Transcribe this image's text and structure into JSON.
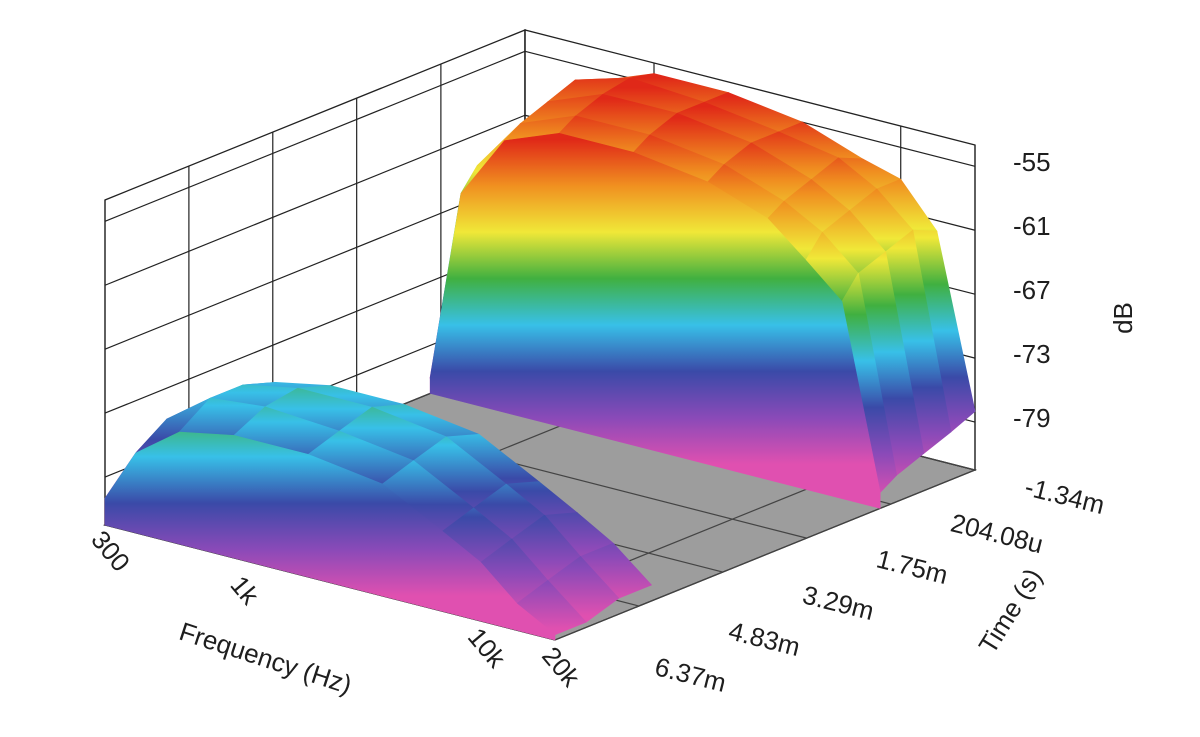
{
  "chart_data": {
    "type": "surface",
    "x_label": "Frequency (Hz)",
    "y_label": "Time (s)",
    "z_label": "dB",
    "xscale": "log",
    "xlim": [
      300,
      20000
    ],
    "xticks": [
      300,
      {
        "value": 1000,
        "label": "1k"
      },
      {
        "value": 10000,
        "label": "10k"
      },
      {
        "value": 20000,
        "label": "20k"
      }
    ],
    "ylim": [
      -0.00134,
      0.00637
    ],
    "yticks": [
      {
        "value": -0.00134,
        "label": "-1.34m"
      },
      {
        "value": 0.00020408,
        "label": "204.08u"
      },
      {
        "value": 0.00175,
        "label": "1.75m"
      },
      {
        "value": 0.00329,
        "label": "3.29m"
      },
      {
        "value": 0.00483,
        "label": "4.83m"
      },
      {
        "value": 0.00637,
        "label": "6.37m"
      }
    ],
    "zlim": [
      -83.5,
      -53
    ],
    "zticks": [
      -79,
      -73,
      -67,
      -61,
      -55
    ],
    "grid": true,
    "colorscale": [
      "#e050b0",
      "#8a4ab8",
      "#3a4aa8",
      "#38c0e8",
      "#40b040",
      "#f0e838",
      "#f09020",
      "#e02818"
    ],
    "x": [
      300,
      400,
      600,
      1000,
      2000,
      4000,
      7000,
      10000,
      14000,
      20000
    ],
    "y": [
      -0.00134,
      -0.0009,
      -0.0004,
      0.0001,
      0.0004,
      0.0025,
      0.0046,
      0.0052,
      0.0058,
      0.00637
    ],
    "z": [
      [
        -80,
        -62,
        -56,
        -54,
        -54,
        -55,
        -57,
        -58,
        -62,
        -78
      ],
      [
        -80,
        -61,
        -55,
        -53.5,
        -54,
        -55,
        -56,
        -58,
        -61,
        -79
      ],
      [
        -80,
        -61,
        -56,
        -54,
        -54,
        -55,
        -57,
        -59,
        -62,
        -80
      ],
      [
        -81,
        -62,
        -57,
        -55,
        -55,
        -56,
        -58,
        -60,
        -63,
        -81
      ],
      [
        -82,
        -64,
        -58,
        -56,
        -56,
        -57,
        -59,
        -62,
        -65,
        -82
      ],
      [
        null,
        null,
        null,
        null,
        null,
        null,
        null,
        null,
        null,
        null
      ],
      [
        -80,
        -75,
        -72,
        -71,
        -71,
        -72,
        -75,
        -77,
        -79,
        -82
      ],
      [
        -80,
        -74,
        -71,
        -70,
        -70,
        -71,
        -74,
        -76,
        -79,
        -82
      ],
      [
        -80,
        -74,
        -71,
        -70.5,
        -71,
        -72,
        -75,
        -77,
        -80,
        -83
      ],
      [
        -81,
        -76,
        -73,
        -72,
        -72,
        -73,
        -76,
        -78,
        -81,
        -83
      ]
    ]
  }
}
